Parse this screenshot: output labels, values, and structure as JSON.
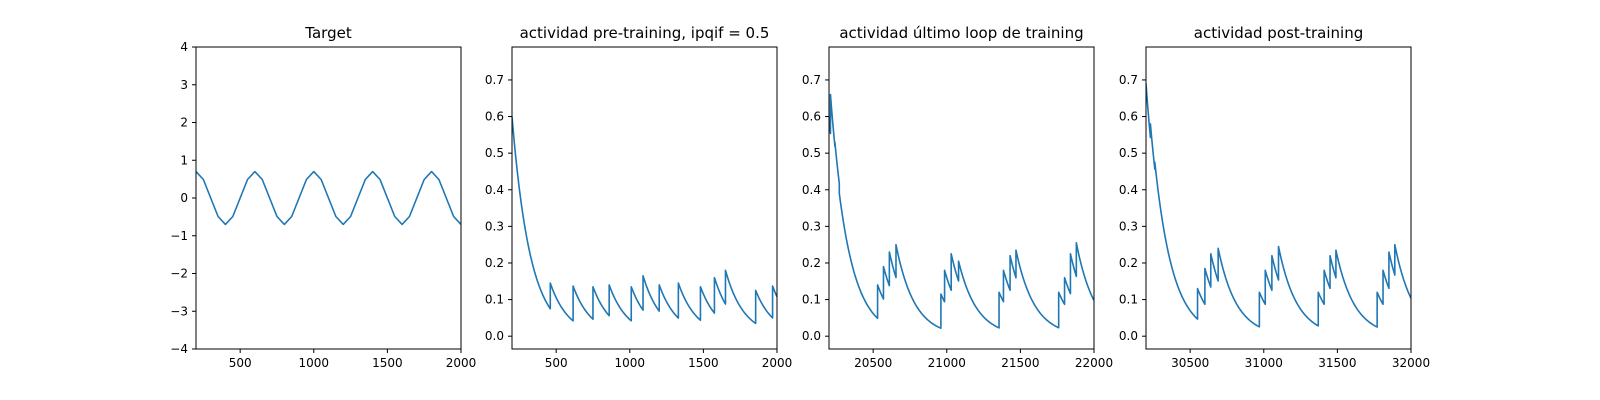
{
  "colors": {
    "line": "#1f77b4"
  },
  "chart_data": [
    {
      "type": "line",
      "title": "Target",
      "xlim": [
        200,
        2000
      ],
      "ylim": [
        -4,
        4
      ],
      "xticks": [
        500,
        1000,
        1500,
        2000
      ],
      "yticks": [
        -4,
        -3,
        -2,
        -1,
        0,
        1,
        2,
        3,
        4
      ],
      "xtick_labels": [
        "500",
        "1000",
        "1500",
        "2000"
      ],
      "ytick_labels": [
        "−4",
        "−3",
        "−2",
        "−1",
        "0",
        "1",
        "2",
        "3",
        "4"
      ],
      "series": [
        {
          "function": "0.7*cos(2*pi*(x-200)/400)",
          "x": [
            200,
            250,
            300,
            350,
            400,
            450,
            500,
            550,
            600,
            650,
            700,
            750,
            800,
            850,
            900,
            950,
            1000,
            1050,
            1100,
            1150,
            1200,
            1250,
            1300,
            1350,
            1400,
            1450,
            1500,
            1550,
            1600,
            1650,
            1700,
            1750,
            1800,
            1850,
            1900,
            1950,
            2000
          ],
          "y": [
            0.7,
            0.49,
            0,
            -0.49,
            -0.7,
            -0.49,
            0,
            0.49,
            0.7,
            0.49,
            0,
            -0.49,
            -0.7,
            -0.49,
            0,
            0.49,
            0.7,
            0.49,
            0,
            -0.49,
            -0.7,
            -0.49,
            0,
            0.49,
            0.7,
            0.49,
            0,
            -0.49,
            -0.7,
            -0.49,
            0,
            0.49,
            0.7,
            0.49,
            0,
            -0.49,
            -0.7
          ]
        }
      ],
      "grid": false,
      "legend": "none"
    },
    {
      "type": "line",
      "title": "actividad pre-training, ipqif = 0.5",
      "xlim": [
        200,
        2000
      ],
      "ylim": [
        -0.035,
        0.79
      ],
      "xticks": [
        500,
        1000,
        1500,
        2000
      ],
      "yticks": [
        0.0,
        0.1,
        0.2,
        0.3,
        0.4,
        0.5,
        0.6,
        0.7
      ],
      "xtick_labels": [
        "500",
        "1000",
        "1500",
        "2000"
      ],
      "ytick_labels": [
        "0.0",
        "0.1",
        "0.2",
        "0.3",
        "0.4",
        "0.5",
        "0.6",
        "0.7"
      ],
      "series": [
        {
          "start": [
            200,
            0.6
          ],
          "decay": 0.008,
          "spikes": [
            [
              460,
              0.145
            ],
            [
              615,
              0.137
            ],
            [
              750,
              0.135
            ],
            [
              860,
              0.14
            ],
            [
              1010,
              0.135
            ],
            [
              1090,
              0.165
            ],
            [
              1200,
              0.14
            ],
            [
              1330,
              0.145
            ],
            [
              1480,
              0.135
            ],
            [
              1575,
              0.16
            ],
            [
              1650,
              0.18
            ],
            [
              1855,
              0.125
            ],
            [
              1970,
              0.137
            ]
          ]
        }
      ],
      "grid": false,
      "legend": "none"
    },
    {
      "type": "line",
      "title": "actividad último loop de training",
      "xlim": [
        20200,
        22000
      ],
      "ylim": [
        -0.035,
        0.79
      ],
      "xticks": [
        20500,
        21000,
        21500,
        22000
      ],
      "yticks": [
        0.0,
        0.1,
        0.2,
        0.3,
        0.4,
        0.5,
        0.6,
        0.7
      ],
      "xtick_labels": [
        "20500",
        "21000",
        "21500",
        "22000"
      ],
      "ytick_labels": [
        "0.0",
        "0.1",
        "0.2",
        "0.3",
        "0.4",
        "0.5",
        "0.6",
        "0.7"
      ],
      "series": [
        {
          "start": [
            20200,
            0.6
          ],
          "decay": 0.008,
          "spikes": [
            [
              20210,
              0.66
            ],
            [
              20240,
              0.53
            ],
            [
              20270,
              0.39
            ],
            [
              20530,
              0.14
            ],
            [
              20570,
              0.19
            ],
            [
              20610,
              0.23
            ],
            [
              20655,
              0.25
            ],
            [
              20960,
              0.115
            ],
            [
              20985,
              0.18
            ],
            [
              21030,
              0.225
            ],
            [
              21080,
              0.205
            ],
            [
              21355,
              0.12
            ],
            [
              21385,
              0.18
            ],
            [
              21430,
              0.22
            ],
            [
              21470,
              0.235
            ],
            [
              21760,
              0.12
            ],
            [
              21800,
              0.16
            ],
            [
              21840,
              0.225
            ],
            [
              21880,
              0.255
            ]
          ]
        }
      ],
      "grid": false,
      "legend": "none"
    },
    {
      "type": "line",
      "title": "actividad post-training",
      "xlim": [
        30200,
        32000
      ],
      "ylim": [
        -0.035,
        0.79
      ],
      "xticks": [
        30500,
        31000,
        31500,
        32000
      ],
      "yticks": [
        0.0,
        0.1,
        0.2,
        0.3,
        0.4,
        0.5,
        0.6,
        0.7
      ],
      "xtick_labels": [
        "30500",
        "31000",
        "31500",
        "32000"
      ],
      "ytick_labels": [
        "0.0",
        "0.1",
        "0.2",
        "0.3",
        "0.4",
        "0.5",
        "0.6",
        "0.7"
      ],
      "series": [
        {
          "start": [
            30200,
            0.69
          ],
          "decay": 0.008,
          "spikes": [
            [
              30230,
              0.58
            ],
            [
              30260,
              0.475
            ],
            [
              30550,
              0.13
            ],
            [
              30600,
              0.185
            ],
            [
              30640,
              0.225
            ],
            [
              30690,
              0.24
            ],
            [
              30970,
              0.12
            ],
            [
              31010,
              0.18
            ],
            [
              31055,
              0.22
            ],
            [
              31100,
              0.245
            ],
            [
              31370,
              0.12
            ],
            [
              31410,
              0.18
            ],
            [
              31450,
              0.22
            ],
            [
              31490,
              0.235
            ],
            [
              31770,
              0.12
            ],
            [
              31810,
              0.18
            ],
            [
              31850,
              0.23
            ],
            [
              31890,
              0.25
            ]
          ]
        }
      ],
      "grid": false,
      "legend": "none"
    }
  ]
}
